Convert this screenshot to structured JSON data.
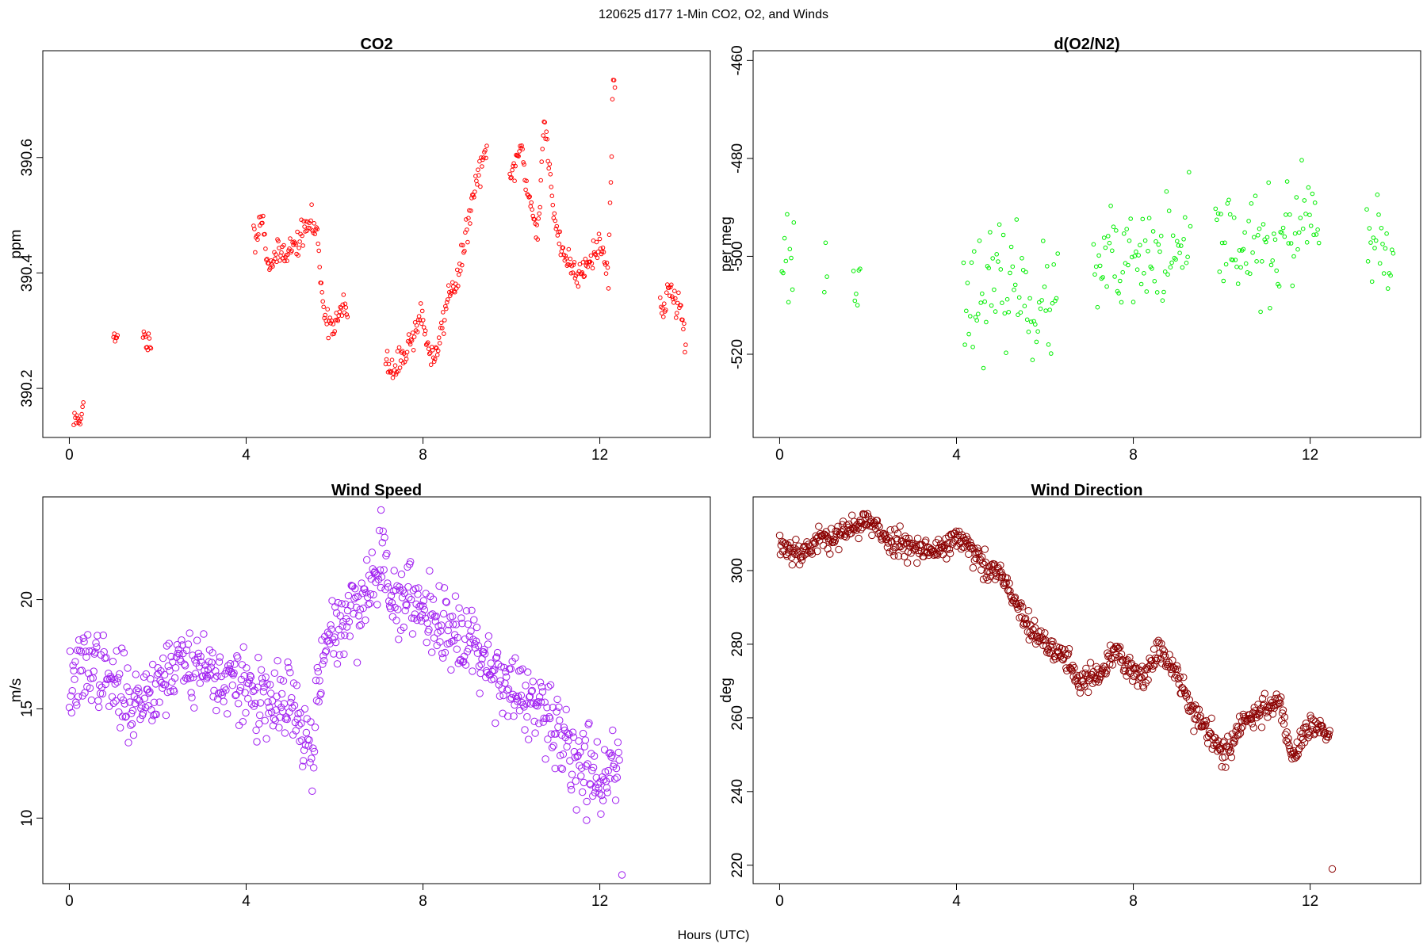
{
  "figure": {
    "title": "120625   d177   1-Min CO2, O2, and Winds",
    "xlabel": "Hours (UTC)"
  },
  "chart_data": [
    {
      "type": "scatter",
      "title": "CO2",
      "xlabel": "",
      "ylabel": "ppm",
      "xlim": [
        -0.6,
        14.5
      ],
      "ylim": [
        390.115,
        390.785
      ],
      "xticks": [
        0,
        4,
        8,
        12
      ],
      "yticks": [
        390.2,
        390.4,
        390.6
      ],
      "ytick_labels": [
        "390.2",
        "390.4",
        "390.6"
      ],
      "color": "#ff0000",
      "marker": "open-circle",
      "anchors": [
        [
          0.1,
          390.14
        ],
        [
          0.3,
          390.16
        ],
        [
          1.05,
          390.285
        ],
        [
          1.7,
          390.285
        ],
        [
          1.8,
          390.28
        ],
        [
          4.2,
          390.465
        ],
        [
          4.35,
          390.5
        ],
        [
          4.5,
          390.415
        ],
        [
          4.7,
          390.43
        ],
        [
          4.9,
          390.44
        ],
        [
          5.1,
          390.445
        ],
        [
          5.3,
          390.47
        ],
        [
          5.45,
          390.49
        ],
        [
          5.6,
          390.47
        ],
        [
          5.7,
          390.38
        ],
        [
          5.8,
          390.32
        ],
        [
          6.0,
          390.31
        ],
        [
          6.2,
          390.34
        ],
        [
          7.2,
          390.24
        ],
        [
          7.35,
          390.225
        ],
        [
          7.55,
          390.26
        ],
        [
          7.75,
          390.285
        ],
        [
          7.95,
          390.33
        ],
        [
          8.1,
          390.28
        ],
        [
          8.25,
          390.24
        ],
        [
          8.6,
          390.37
        ],
        [
          8.8,
          390.39
        ],
        [
          9.1,
          390.52
        ],
        [
          9.35,
          390.6
        ],
        [
          10.0,
          390.565
        ],
        [
          10.2,
          390.62
        ],
        [
          10.4,
          390.53
        ],
        [
          10.6,
          390.47
        ],
        [
          10.75,
          390.67
        ],
        [
          10.95,
          390.5
        ],
        [
          11.2,
          390.43
        ],
        [
          11.5,
          390.395
        ],
        [
          11.7,
          390.42
        ],
        [
          12.0,
          390.45
        ],
        [
          12.2,
          390.4
        ],
        [
          12.3,
          390.74
        ],
        [
          13.4,
          390.33
        ],
        [
          13.6,
          390.38
        ],
        [
          13.8,
          390.34
        ],
        [
          13.95,
          390.28
        ]
      ],
      "gaps": [
        [
          0.32,
          1.0
        ],
        [
          1.1,
          1.65
        ],
        [
          1.85,
          4.15
        ],
        [
          6.3,
          7.15
        ],
        [
          9.45,
          9.95
        ],
        [
          12.35,
          13.35
        ]
      ],
      "noise": 0.012,
      "step": 0.018,
      "seed": 11
    },
    {
      "type": "scatter",
      "title": "d(O2/N2)",
      "xlabel": "",
      "ylabel": "per meg",
      "xlim": [
        -0.6,
        14.5
      ],
      "ylim": [
        -537,
        -458
      ],
      "xticks": [
        0,
        4,
        8,
        12
      ],
      "yticks": [
        -520,
        -500,
        -480,
        -460
      ],
      "ytick_labels": [
        "-520",
        "-500",
        "-480",
        "-460"
      ],
      "color": "#00ee00",
      "marker": "open-circle",
      "anchors": [
        [
          0.05,
          -497
        ],
        [
          0.3,
          -502
        ],
        [
          1.05,
          -500
        ],
        [
          1.7,
          -503
        ],
        [
          1.8,
          -510
        ],
        [
          4.2,
          -506
        ],
        [
          4.6,
          -508
        ],
        [
          5.0,
          -506
        ],
        [
          5.4,
          -505
        ],
        [
          5.8,
          -511
        ],
        [
          6.2,
          -510
        ],
        [
          7.2,
          -504
        ],
        [
          7.5,
          -501
        ],
        [
          7.8,
          -503
        ],
        [
          8.1,
          -502
        ],
        [
          8.5,
          -500
        ],
        [
          8.9,
          -501
        ],
        [
          9.2,
          -500
        ],
        [
          9.9,
          -497
        ],
        [
          10.3,
          -496
        ],
        [
          10.7,
          -499
        ],
        [
          11.1,
          -499
        ],
        [
          11.5,
          -496
        ],
        [
          11.9,
          -493
        ],
        [
          12.1,
          -494
        ],
        [
          13.3,
          -498
        ],
        [
          13.6,
          -500
        ],
        [
          13.9,
          -502
        ]
      ],
      "gaps": [
        [
          0.35,
          1.0
        ],
        [
          1.1,
          1.65
        ],
        [
          1.85,
          4.15
        ],
        [
          6.3,
          7.1
        ],
        [
          9.3,
          9.85
        ],
        [
          12.2,
          13.25
        ]
      ],
      "noise": 5.5,
      "step": 0.03,
      "seed": 23
    },
    {
      "type": "scatter",
      "title": "Wind Speed",
      "xlabel": "",
      "ylabel": "m/s",
      "xlim": [
        -0.6,
        14.5
      ],
      "ylim": [
        7,
        24.7
      ],
      "xticks": [
        0,
        4,
        8,
        12
      ],
      "yticks": [
        10,
        15,
        20
      ],
      "ytick_labels": [
        "10",
        "15",
        "20"
      ],
      "color": "#a020f0",
      "marker": "open-circle",
      "anchors": [
        [
          0.0,
          16.0
        ],
        [
          0.5,
          17.2
        ],
        [
          1.0,
          16.0
        ],
        [
          1.5,
          15.2
        ],
        [
          2.0,
          16.2
        ],
        [
          2.5,
          17.2
        ],
        [
          3.0,
          17.0
        ],
        [
          3.5,
          16.2
        ],
        [
          4.0,
          16.0
        ],
        [
          4.5,
          15.0
        ],
        [
          5.0,
          15.4
        ],
        [
          5.3,
          13.5
        ],
        [
          5.5,
          13.0
        ],
        [
          5.6,
          15.5
        ],
        [
          5.9,
          18.5
        ],
        [
          6.3,
          19.2
        ],
        [
          6.8,
          20.5
        ],
        [
          7.1,
          22.0
        ],
        [
          7.4,
          19.8
        ],
        [
          8.0,
          19.8
        ],
        [
          8.5,
          18.8
        ],
        [
          9.0,
          18.5
        ],
        [
          9.5,
          17.0
        ],
        [
          10.0,
          16.0
        ],
        [
          10.5,
          15.0
        ],
        [
          11.0,
          14.0
        ],
        [
          11.5,
          12.8
        ],
        [
          12.0,
          12.0
        ],
        [
          12.45,
          12.2
        ]
      ],
      "gaps": [],
      "noise": 0.85,
      "step": 0.0167,
      "seed": 37,
      "extra_points": [
        [
          12.5,
          7.4
        ],
        [
          11.7,
          9.9
        ],
        [
          7.05,
          24.1
        ]
      ]
    },
    {
      "type": "scatter",
      "title": "Wind Direction",
      "xlabel": "",
      "ylabel": "deg",
      "xlim": [
        -0.6,
        14.5
      ],
      "ylim": [
        215,
        320
      ],
      "xticks": [
        0,
        4,
        8,
        12
      ],
      "yticks": [
        220,
        240,
        260,
        280,
        300
      ],
      "ytick_labels": [
        "220",
        "240",
        "260",
        "280",
        "300"
      ],
      "color": "#8b0000",
      "marker": "open-circle",
      "anchors": [
        [
          0.0,
          307
        ],
        [
          0.5,
          305
        ],
        [
          1.0,
          309
        ],
        [
          1.5,
          310
        ],
        [
          1.9,
          314
        ],
        [
          2.5,
          308
        ],
        [
          3.0,
          307
        ],
        [
          3.5,
          305
        ],
        [
          4.0,
          309
        ],
        [
          4.3,
          306
        ],
        [
          4.7,
          300
        ],
        [
          5.0,
          299
        ],
        [
          5.3,
          292
        ],
        [
          5.7,
          283
        ],
        [
          6.0,
          280
        ],
        [
          6.5,
          276
        ],
        [
          6.8,
          270
        ],
        [
          7.2,
          271
        ],
        [
          7.6,
          278
        ],
        [
          7.9,
          273
        ],
        [
          8.3,
          272
        ],
        [
          8.6,
          279
        ],
        [
          9.0,
          272
        ],
        [
          9.3,
          263
        ],
        [
          9.7,
          256
        ],
        [
          10.1,
          250
        ],
        [
          10.5,
          259
        ],
        [
          10.9,
          262
        ],
        [
          11.3,
          265
        ],
        [
          11.6,
          249
        ],
        [
          11.9,
          257
        ],
        [
          12.2,
          258
        ],
        [
          12.45,
          254
        ]
      ],
      "gaps": [],
      "noise": 1.8,
      "step": 0.0167,
      "seed": 53,
      "extra_points": [
        [
          12.5,
          219
        ]
      ]
    }
  ]
}
